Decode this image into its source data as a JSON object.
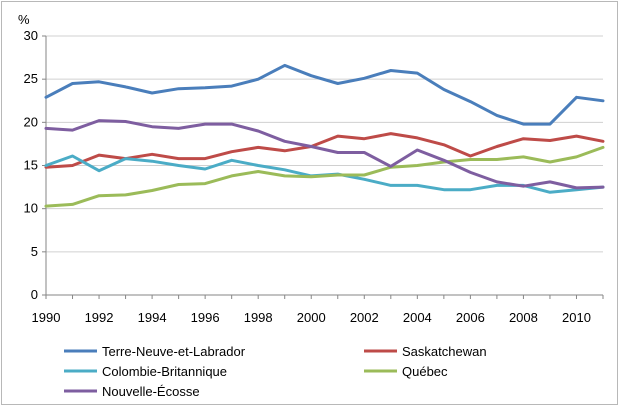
{
  "chart_data": {
    "type": "line",
    "title": "",
    "unit_label": "%",
    "xlabel": "",
    "ylabel": "",
    "ylim": [
      0,
      30
    ],
    "yticks": [
      0,
      5,
      10,
      15,
      20,
      25,
      30
    ],
    "xlim": [
      1990,
      2011
    ],
    "xticks": [
      1990,
      1992,
      1994,
      1996,
      1998,
      2000,
      2002,
      2004,
      2006,
      2008,
      2010
    ],
    "grid": "horizontal",
    "legend_position": "bottom",
    "x": [
      1990,
      1991,
      1992,
      1993,
      1994,
      1995,
      1996,
      1997,
      1998,
      1999,
      2000,
      2001,
      2002,
      2003,
      2004,
      2005,
      2006,
      2007,
      2008,
      2009,
      2010,
      2011
    ],
    "series": [
      {
        "name": "Terre-Neuve-et-Labrador",
        "color": "#4a7ebb",
        "values": [
          22.9,
          24.5,
          24.7,
          24.1,
          23.4,
          23.9,
          24.0,
          24.2,
          25.0,
          26.6,
          25.4,
          24.5,
          25.1,
          26.0,
          25.7,
          23.8,
          22.4,
          20.8,
          19.8,
          19.8,
          22.9,
          22.5
        ]
      },
      {
        "name": "Saskatchewan",
        "color": "#be4b48",
        "values": [
          14.8,
          15.0,
          16.2,
          15.8,
          16.3,
          15.8,
          15.8,
          16.6,
          17.1,
          16.7,
          17.2,
          18.4,
          18.1,
          18.7,
          18.2,
          17.4,
          16.1,
          17.2,
          18.1,
          17.9,
          18.4,
          17.8
        ]
      },
      {
        "name": "Colombie-Britannique",
        "color": "#4bacc6",
        "values": [
          15.0,
          16.1,
          14.4,
          15.8,
          15.5,
          15.0,
          14.6,
          15.6,
          15.0,
          14.5,
          13.8,
          14.0,
          13.4,
          12.7,
          12.7,
          12.2,
          12.2,
          12.7,
          12.7,
          11.9,
          12.2,
          12.5
        ]
      },
      {
        "name": "Québec",
        "color": "#9bbb59",
        "values": [
          10.3,
          10.5,
          11.5,
          11.6,
          12.1,
          12.8,
          12.9,
          13.8,
          14.3,
          13.8,
          13.7,
          13.9,
          13.9,
          14.8,
          15.0,
          15.4,
          15.7,
          15.7,
          16.0,
          15.4,
          16.0,
          17.1
        ]
      },
      {
        "name": "Nouvelle-Écosse",
        "color": "#7e5ea0",
        "values": [
          19.3,
          19.1,
          20.2,
          20.1,
          19.5,
          19.3,
          19.8,
          19.8,
          19.0,
          17.8,
          17.2,
          16.5,
          16.5,
          14.9,
          16.8,
          15.6,
          14.2,
          13.1,
          12.6,
          13.1,
          12.4,
          12.5
        ]
      }
    ]
  }
}
